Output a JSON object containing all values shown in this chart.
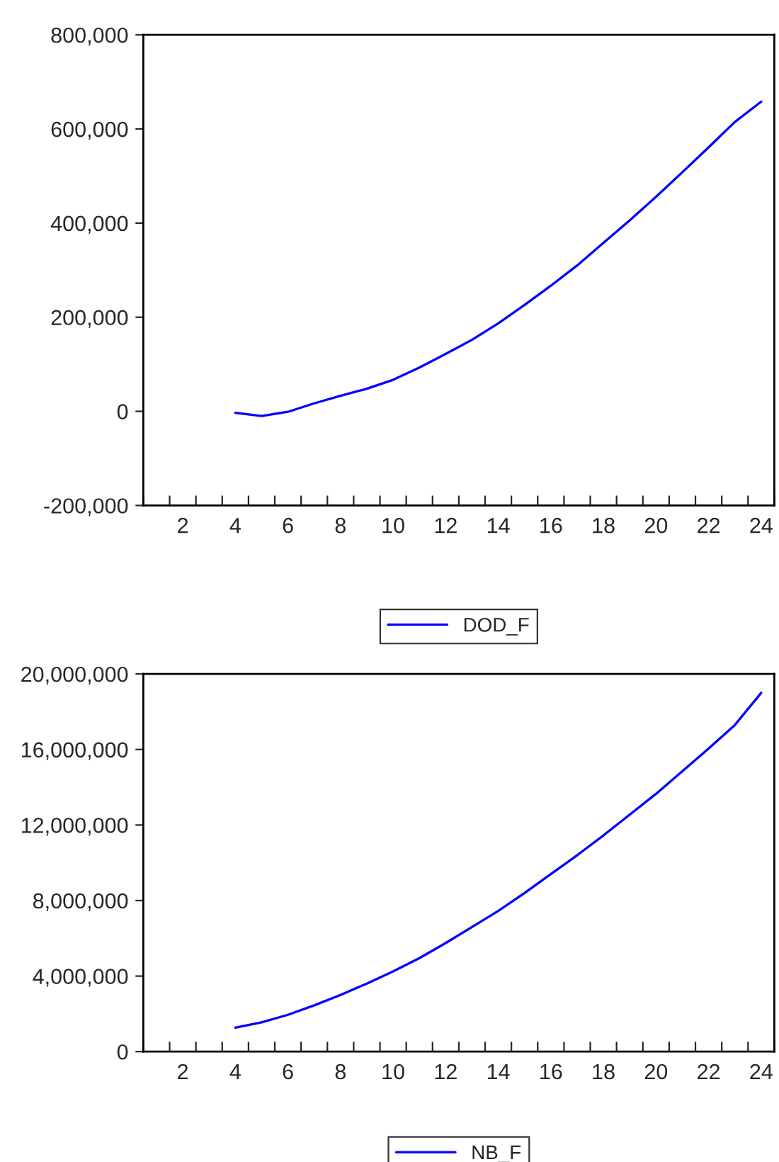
{
  "chart_data": [
    {
      "type": "line",
      "x": [
        4,
        5,
        6,
        7,
        8,
        9,
        10,
        11,
        12,
        13,
        14,
        15,
        16,
        17,
        18,
        19,
        20,
        21,
        22,
        23,
        24
      ],
      "series": [
        {
          "name": "DOD_F",
          "color": "#0000ff",
          "values": [
            -3000,
            -10000,
            -1000,
            17000,
            33000,
            48000,
            67000,
            93000,
            122000,
            152000,
            187000,
            226000,
            267000,
            310000,
            358000,
            406000,
            456000,
            508000,
            561000,
            615000,
            658000
          ]
        }
      ],
      "xlim": [
        0.5,
        24.5
      ],
      "xticks": [
        {
          "value": 0.5,
          "label": null
        },
        {
          "value": 1.5,
          "label": null
        },
        2,
        {
          "value": 2.5,
          "label": null
        },
        {
          "value": 3.5,
          "label": null
        },
        4,
        {
          "value": 4.5,
          "label": null
        },
        {
          "value": 5.5,
          "label": null
        },
        6,
        {
          "value": 6.5,
          "label": null
        },
        {
          "value": 7.5,
          "label": null
        },
        8,
        {
          "value": 8.5,
          "label": null
        },
        {
          "value": 9.5,
          "label": null
        },
        10,
        {
          "value": 10.5,
          "label": null
        },
        {
          "value": 11.5,
          "label": null
        },
        12,
        {
          "value": 12.5,
          "label": null
        },
        {
          "value": 13.5,
          "label": null
        },
        14,
        {
          "value": 14.5,
          "label": null
        },
        {
          "value": 15.5,
          "label": null
        },
        16,
        {
          "value": 16.5,
          "label": null
        },
        {
          "value": 17.5,
          "label": null
        },
        18,
        {
          "value": 18.5,
          "label": null
        },
        {
          "value": 19.5,
          "label": null
        },
        20,
        {
          "value": 20.5,
          "label": null
        },
        {
          "value": 21.5,
          "label": null
        },
        22,
        {
          "value": 22.5,
          "label": null
        },
        {
          "value": 23.5,
          "label": null
        },
        24,
        {
          "value": 24.5,
          "label": null
        }
      ],
      "ylim": [
        -200000,
        800000
      ],
      "yticks": [
        {
          "value": -200000,
          "label": "-200,000"
        },
        0,
        {
          "value": 200000,
          "label": "200,000"
        },
        {
          "value": 400000,
          "label": "400,000"
        },
        {
          "value": 600000,
          "label": "600,000"
        },
        {
          "value": 800000,
          "label": "800,000"
        }
      ],
      "legend": "bottom",
      "grid": false
    },
    {
      "type": "line",
      "x": [
        4,
        5,
        6,
        7,
        8,
        9,
        10,
        11,
        12,
        13,
        14,
        15,
        16,
        17,
        18,
        19,
        20,
        21,
        22,
        23,
        24
      ],
      "series": [
        {
          "name": "NB_F",
          "color": "#0000ff",
          "values": [
            1270000,
            1550000,
            1950000,
            2450000,
            3000000,
            3600000,
            4250000,
            4950000,
            5750000,
            6600000,
            7450000,
            8400000,
            9400000,
            10400000,
            11450000,
            12550000,
            13650000,
            14850000,
            16050000,
            17300000,
            19000000
          ]
        }
      ],
      "xlim": [
        0.5,
        24.5
      ],
      "xticks": [
        {
          "value": 0.5,
          "label": null
        },
        {
          "value": 1.5,
          "label": null
        },
        2,
        {
          "value": 2.5,
          "label": null
        },
        {
          "value": 3.5,
          "label": null
        },
        4,
        {
          "value": 4.5,
          "label": null
        },
        {
          "value": 5.5,
          "label": null
        },
        6,
        {
          "value": 6.5,
          "label": null
        },
        {
          "value": 7.5,
          "label": null
        },
        8,
        {
          "value": 8.5,
          "label": null
        },
        {
          "value": 9.5,
          "label": null
        },
        10,
        {
          "value": 10.5,
          "label": null
        },
        {
          "value": 11.5,
          "label": null
        },
        12,
        {
          "value": 12.5,
          "label": null
        },
        {
          "value": 13.5,
          "label": null
        },
        14,
        {
          "value": 14.5,
          "label": null
        },
        {
          "value": 15.5,
          "label": null
        },
        16,
        {
          "value": 16.5,
          "label": null
        },
        {
          "value": 17.5,
          "label": null
        },
        18,
        {
          "value": 18.5,
          "label": null
        },
        {
          "value": 19.5,
          "label": null
        },
        20,
        {
          "value": 20.5,
          "label": null
        },
        {
          "value": 21.5,
          "label": null
        },
        22,
        {
          "value": 22.5,
          "label": null
        },
        {
          "value": 23.5,
          "label": null
        },
        24,
        {
          "value": 24.5,
          "label": null
        }
      ],
      "ylim": [
        0,
        20000000
      ],
      "yticks": [
        0,
        {
          "value": 4000000,
          "label": "4,000,000"
        },
        {
          "value": 8000000,
          "label": "8,000,000"
        },
        {
          "value": 12000000,
          "label": "12,000,000"
        },
        {
          "value": 16000000,
          "label": "16,000,000"
        },
        {
          "value": 20000000,
          "label": "20,000,000"
        }
      ],
      "legend": "bottom",
      "grid": false
    }
  ]
}
